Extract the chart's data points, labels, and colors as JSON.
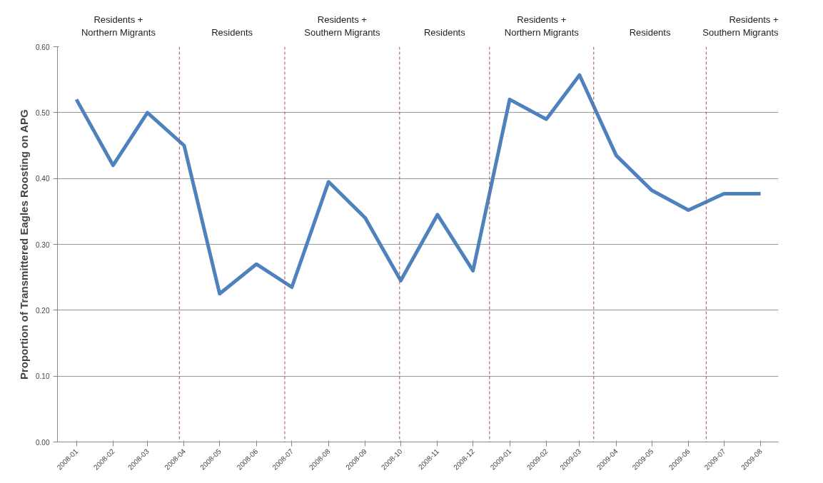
{
  "chart_data": {
    "type": "line",
    "ylabel": "Proportion of Transmittered Eagles Roosting on APG",
    "x": [
      "2008-01",
      "2008-02",
      "2008-03",
      "2008-04",
      "2008-05",
      "2008-06",
      "2008-07",
      "2008-08",
      "2008-09",
      "2008-10",
      "2008-11",
      "2008-12",
      "2009-01",
      "2009-02",
      "2009-03",
      "2009-04",
      "2009-05",
      "2009-06",
      "2009-07",
      "2009-08"
    ],
    "series": [
      {
        "color": "#4f81bd",
        "values": [
          0.52,
          0.42,
          0.5,
          0.45,
          0.225,
          0.27,
          0.235,
          0.395,
          0.34,
          0.245,
          0.345,
          0.26,
          0.52,
          0.49,
          0.557,
          0.435,
          0.382,
          0.352,
          0.377,
          0.377
        ]
      }
    ],
    "xlim": [
      "2007-12-16",
      "2009-08-16"
    ],
    "xticks": [
      {
        "value": "2008-01",
        "label": "2008-01"
      },
      {
        "value": "2008-02",
        "label": "2008-02"
      },
      {
        "value": "2008-03",
        "label": "2008-03"
      },
      {
        "value": "2008-04",
        "label": "2008-04"
      },
      {
        "value": "2008-05",
        "label": "2008-05"
      },
      {
        "value": "2008-06",
        "label": "2008-06"
      },
      {
        "value": "2008-07",
        "label": "2008-07"
      },
      {
        "value": "2008-08",
        "label": "2008-08"
      },
      {
        "value": "2008-09",
        "label": "2008-09"
      },
      {
        "value": "2008-10",
        "label": "2008-10"
      },
      {
        "value": "2008-11",
        "label": "2008-11"
      },
      {
        "value": "2008-12",
        "label": "2008-12"
      },
      {
        "value": "2009-01",
        "label": "2009-01"
      },
      {
        "value": "2009-02",
        "label": "2009-02"
      },
      {
        "value": "2009-03",
        "label": "2009-03"
      },
      {
        "value": "2009-04",
        "label": "2009-04"
      },
      {
        "value": "2009-05",
        "label": "2009-05"
      },
      {
        "value": "2009-06",
        "label": "2009-06"
      },
      {
        "value": "2009-07",
        "label": "2009-07"
      },
      {
        "value": "2009-08",
        "label": "2009-08"
      }
    ],
    "ylim": [
      0,
      0.6
    ],
    "yticks": [
      {
        "value": 0,
        "label": "0.00"
      },
      {
        "value": 0.1,
        "label": "0.10"
      },
      {
        "value": 0.2,
        "label": "0.20"
      },
      {
        "value": 0.3,
        "label": "0.30"
      },
      {
        "value": 0.4,
        "label": "0.40"
      },
      {
        "value": 0.5,
        "label": "0.50"
      },
      {
        "value": 0.6,
        "label": "0.60"
      }
    ],
    "grid": "y",
    "marker": "none",
    "line_style": "solid",
    "ref_lines": [
      {
        "axis": "x",
        "value": "2008-03-28",
        "color": "#a0504d",
        "line_style": "dashed"
      },
      {
        "axis": "x",
        "value": "2008-06-25",
        "color": "#a0504d",
        "line_style": "dashed"
      },
      {
        "axis": "x",
        "value": "2008-09-30",
        "color": "#a0504d",
        "line_style": "dashed"
      },
      {
        "axis": "x",
        "value": "2008-12-15",
        "color": "#a0504d",
        "line_style": "dashed"
      },
      {
        "axis": "x",
        "value": "2009-03-13",
        "color": "#a0504d",
        "line_style": "dashed"
      },
      {
        "axis": "x",
        "value": "2009-06-16",
        "color": "#a0504d",
        "line_style": "dashed"
      }
    ],
    "annotations": [
      "Residents +\nNorthern Migrants",
      "Residents",
      "Residents +\nSouthern Migrants",
      "Residents",
      "Residents +\nNorthern Migrants",
      "Residents",
      "Residents +\nSouthern Migrants"
    ]
  }
}
